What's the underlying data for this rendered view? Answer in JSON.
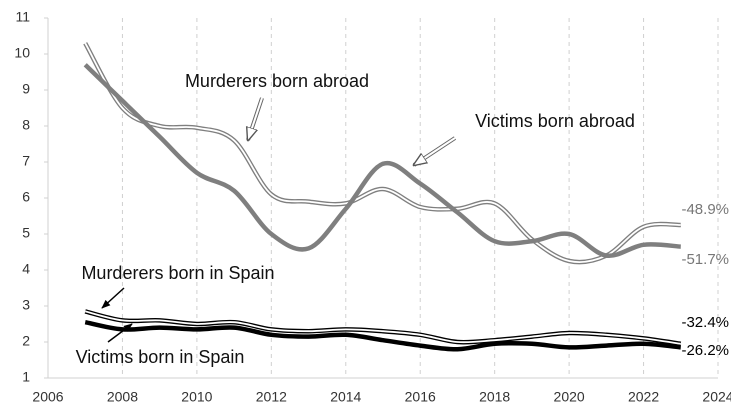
{
  "chart_data": {
    "type": "line",
    "x": [
      2007,
      2008,
      2009,
      2010,
      2011,
      2012,
      2013,
      2014,
      2015,
      2016,
      2017,
      2018,
      2019,
      2020,
      2021,
      2022,
      2023
    ],
    "xlim": [
      2006,
      2024
    ],
    "xticks": [
      2006,
      2008,
      2010,
      2012,
      2014,
      2016,
      2018,
      2020,
      2022,
      2024
    ],
    "ylim": [
      1,
      11
    ],
    "yticks": [
      1,
      2,
      3,
      4,
      5,
      6,
      7,
      8,
      9,
      10,
      11
    ],
    "grid": true,
    "series": [
      {
        "name": "Murderers born abroad",
        "color": "#7f7f7f",
        "style": "double",
        "end_label": "-48.9%",
        "values": [
          10.3,
          8.5,
          8.0,
          7.95,
          7.6,
          6.1,
          5.9,
          5.85,
          6.25,
          5.75,
          5.7,
          5.85,
          4.85,
          4.25,
          4.4,
          5.2,
          5.25
        ]
      },
      {
        "name": "Victims born abroad",
        "color": "#7f7f7f",
        "style": "thick",
        "end_label": "-51.7%",
        "values": [
          9.7,
          8.7,
          7.7,
          6.7,
          6.2,
          5.0,
          4.6,
          5.7,
          6.95,
          6.4,
          5.6,
          4.8,
          4.8,
          5.0,
          4.4,
          4.7,
          4.65
        ]
      },
      {
        "name": "Murderers born in Spain",
        "color": "#000000",
        "style": "double",
        "end_label": "-32.4%",
        "values": [
          2.85,
          2.6,
          2.6,
          2.5,
          2.55,
          2.35,
          2.3,
          2.35,
          2.3,
          2.2,
          2.0,
          2.05,
          2.15,
          2.25,
          2.2,
          2.1,
          1.95
        ]
      },
      {
        "name": "Victims born in Spain",
        "color": "#000000",
        "style": "thick",
        "end_label": "-26.2%",
        "values": [
          2.55,
          2.35,
          2.4,
          2.35,
          2.4,
          2.2,
          2.15,
          2.2,
          2.05,
          1.9,
          1.8,
          1.95,
          1.95,
          1.85,
          1.9,
          1.95,
          1.85
        ]
      }
    ]
  }
}
